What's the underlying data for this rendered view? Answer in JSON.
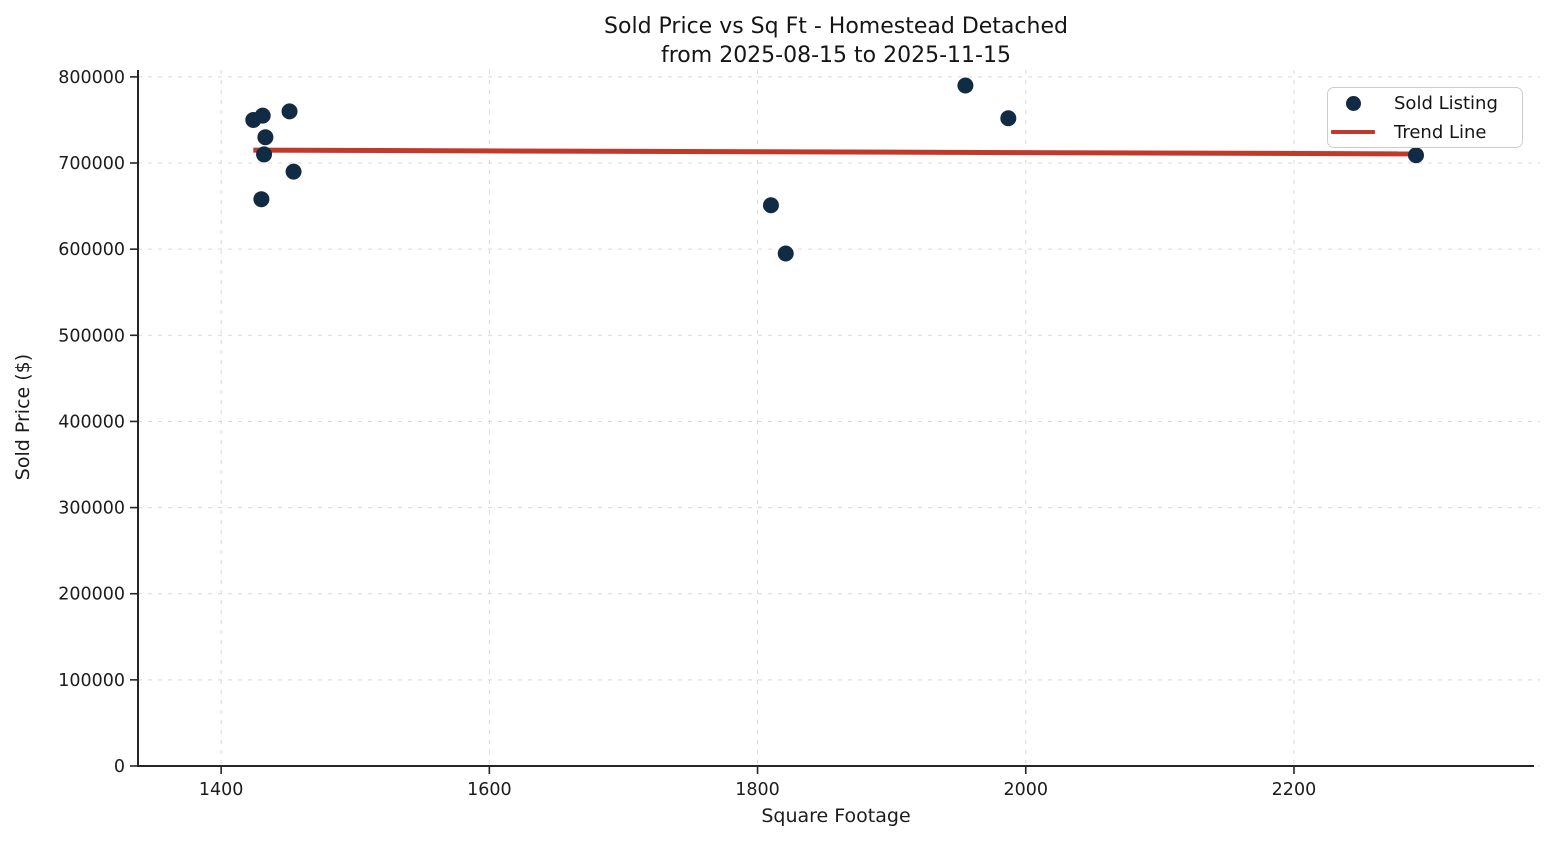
{
  "chart_data": {
    "type": "scatter",
    "title": "Sold Price vs Sq Ft - Homestead Detached",
    "subtitle": "from 2025-08-15 to 2025-11-15",
    "xlabel": "Square Footage",
    "ylabel": "Sold Price ($)",
    "xlim": [
      1338,
      2379
    ],
    "ylim": [
      0,
      808000
    ],
    "x_ticks": [
      1400,
      1600,
      1800,
      2000,
      2200
    ],
    "y_ticks": [
      0,
      100000,
      200000,
      300000,
      400000,
      500000,
      600000,
      700000,
      800000
    ],
    "grid": "dashed-light-gray",
    "legend_position": "upper-right",
    "series": [
      {
        "name": "Sold Listing",
        "type": "scatter",
        "color": "#122b45",
        "marker_radius": 8,
        "points": [
          [
            1424,
            750000
          ],
          [
            1431,
            755000
          ],
          [
            1451,
            760000
          ],
          [
            1433,
            730000
          ],
          [
            1432,
            710000
          ],
          [
            1454,
            690000
          ],
          [
            1430,
            658000
          ],
          [
            1810,
            651000
          ],
          [
            1821,
            595000
          ],
          [
            1955,
            790000
          ],
          [
            1987,
            752000
          ],
          [
            2291,
            709000
          ]
        ]
      },
      {
        "name": "Trend Line",
        "type": "line",
        "color": "#c0392b",
        "line_width": 5,
        "points": [
          [
            1424,
            715000
          ],
          [
            2291,
            710600
          ]
        ]
      }
    ],
    "legend": {
      "entries": [
        {
          "label": "Sold Listing",
          "marker": "dot",
          "color": "#122b45"
        },
        {
          "label": "Trend Line",
          "marker": "line",
          "color": "#c0392b"
        }
      ]
    }
  },
  "style_colors": {
    "spine": "#262626",
    "tick_label": "#1c1c1c",
    "gridline": "#d9d9d9",
    "background": "#ffffff"
  }
}
